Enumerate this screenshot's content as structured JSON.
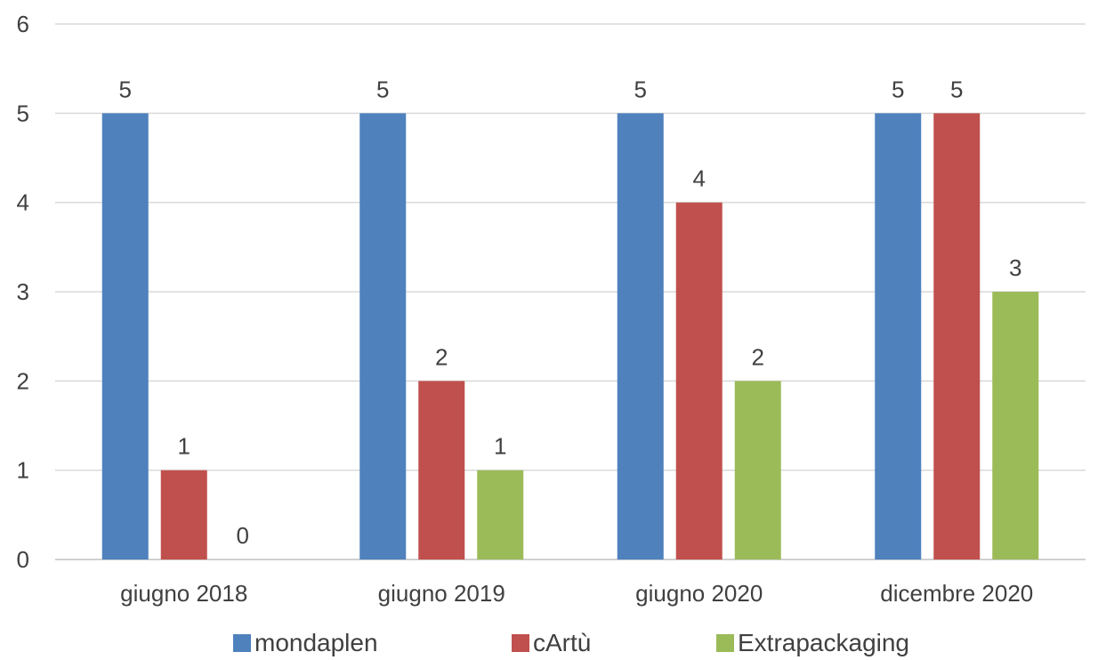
{
  "chart_data": {
    "type": "bar",
    "categories": [
      "giugno 2018",
      "giugno 2019",
      "giugno 2020",
      "dicembre 2020"
    ],
    "series": [
      {
        "name": "mondaplen",
        "color": "#4f81bd",
        "values": [
          5,
          5,
          5,
          5
        ]
      },
      {
        "name": "cArtù",
        "color": "#c0504d",
        "values": [
          1,
          2,
          4,
          5
        ]
      },
      {
        "name": "Extrapackaging",
        "color": "#9bbb59",
        "values": [
          0,
          1,
          2,
          3
        ]
      }
    ],
    "ylim": [
      0,
      6
    ],
    "yticks": [
      "0",
      "1",
      "2",
      "3",
      "4",
      "5",
      "6"
    ],
    "grid": true,
    "data_labels": true,
    "legend_position": "bottom"
  }
}
